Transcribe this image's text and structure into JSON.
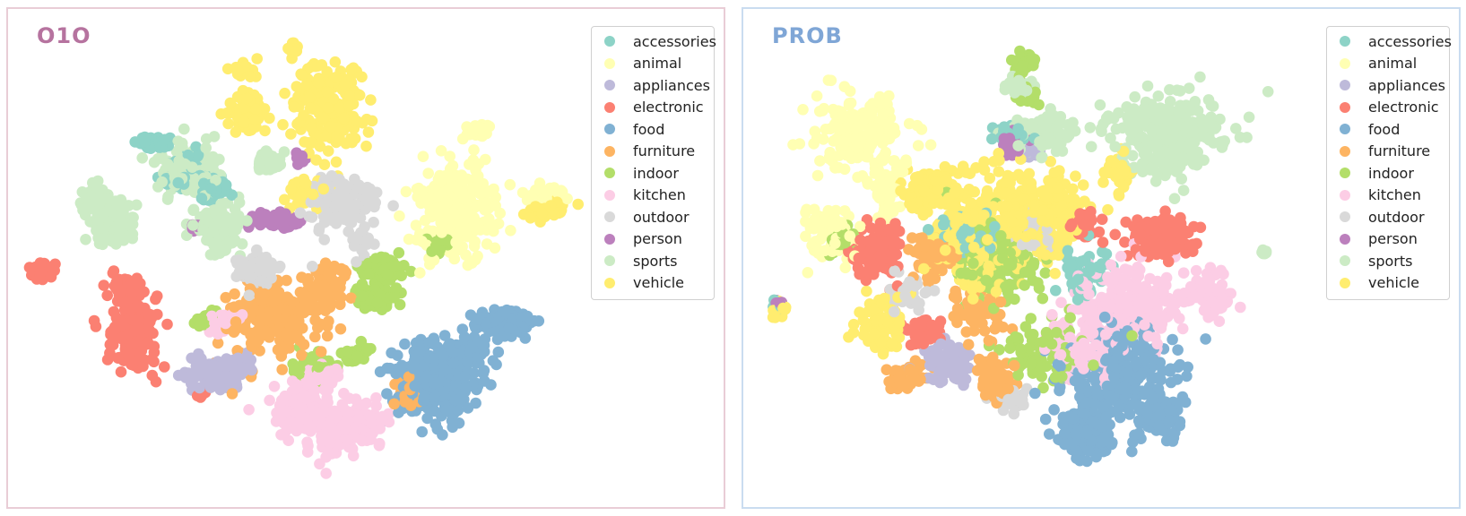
{
  "categories": [
    "accessories",
    "animal",
    "appliances",
    "electronic",
    "food",
    "furniture",
    "indoor",
    "kitchen",
    "outdoor",
    "person",
    "sports",
    "vehicle"
  ],
  "colors": {
    "accessories": "#8dd3c7",
    "animal": "#ffffb3",
    "appliances": "#bebada",
    "electronic": "#fb8072",
    "food": "#80b1d3",
    "furniture": "#fdb462",
    "indoor": "#b3de69",
    "kitchen": "#fccde5",
    "outdoor": "#d9d9d9",
    "person": "#bc80bd",
    "sports": "#ccebc5",
    "vehicle": "#ffed6f"
  },
  "panels": [
    {
      "title": "O1O",
      "title_color": "#b6739f",
      "border_color": "#e9cdd6"
    },
    {
      "title": "PROB",
      "title_color": "#7fa6d6",
      "border_color": "#cadcf0"
    }
  ],
  "chart_data": [
    {
      "type": "scatter",
      "title": "O1O",
      "xlabel": "",
      "ylabel": "",
      "axes": "hidden",
      "grid": false,
      "legend_placement": "top-right",
      "series": [
        {
          "name": "accessories",
          "clusters": [
            [
              160,
              -150,
              12,
              6,
              60
            ],
            [
              200,
              -180,
              22,
              18,
              80
            ],
            [
              230,
              -200,
              12,
              10,
              40
            ]
          ]
        },
        {
          "name": "animal",
          "clusters": [
            [
              500,
              -225,
              40,
              45,
              220
            ],
            [
              600,
              -205,
              18,
              8,
              40
            ],
            [
              525,
              -135,
              12,
              8,
              30
            ]
          ]
        },
        {
          "name": "appliances",
          "clusters": [
            [
              230,
              -410,
              30,
              15,
              110
            ],
            [
              260,
              -395,
              15,
              10,
              40
            ]
          ]
        },
        {
          "name": "electronic",
          "clusters": [
            [
              40,
              -295,
              12,
              8,
              40
            ],
            [
              140,
              -360,
              25,
              40,
              170
            ],
            [
              130,
              -315,
              15,
              10,
              40
            ],
            [
              215,
              -430,
              6,
              4,
              10
            ]
          ]
        },
        {
          "name": "food",
          "clusters": [
            [
              480,
              -415,
              45,
              35,
              240
            ],
            [
              550,
              -350,
              30,
              12,
              110
            ],
            [
              520,
              -380,
              15,
              15,
              40
            ]
          ]
        },
        {
          "name": "furniture",
          "clusters": [
            [
              300,
              -345,
              45,
              35,
              220
            ],
            [
              360,
              -310,
              20,
              18,
              60
            ],
            [
              450,
              -430,
              15,
              15,
              40
            ]
          ]
        },
        {
          "name": "indoor",
          "clusters": [
            [
              410,
              -320,
              20,
              10,
              70
            ],
            [
              420,
              -290,
              20,
              10,
              70
            ],
            [
              340,
              -400,
              18,
              12,
              60
            ],
            [
              220,
              -345,
              12,
              8,
              30
            ],
            [
              390,
              -385,
              12,
              10,
              30
            ],
            [
              480,
              -265,
              12,
              10,
              40
            ]
          ]
        },
        {
          "name": "kitchen",
          "clusters": [
            [
              330,
              -450,
              30,
              25,
              140
            ],
            [
              380,
              -465,
              35,
              25,
              140
            ],
            [
              350,
              -410,
              20,
              10,
              60
            ],
            [
              240,
              -350,
              20,
              10,
              30
            ]
          ]
        },
        {
          "name": "outdoor",
          "clusters": [
            [
              370,
              -215,
              30,
              25,
              150
            ],
            [
              280,
              -290,
              25,
              15,
              60
            ],
            [
              395,
              -260,
              10,
              10,
              20
            ]
          ]
        },
        {
          "name": "person",
          "clusters": [
            [
              300,
              -235,
              20,
              8,
              70
            ],
            [
              210,
              -245,
              6,
              5,
              10
            ],
            [
              325,
              -165,
              6,
              6,
              10
            ]
          ]
        },
        {
          "name": "sports",
          "clusters": [
            [
              200,
              -180,
              30,
              20,
              180
            ],
            [
              115,
              -240,
              22,
              18,
              110
            ],
            [
              95,
              -215,
              12,
              18,
              60
            ],
            [
              235,
              -245,
              22,
              25,
              110
            ],
            [
              290,
              -170,
              12,
              12,
              40
            ]
          ]
        },
        {
          "name": "vehicle",
          "clusters": [
            [
              265,
              -115,
              18,
              18,
              80
            ],
            [
              360,
              -110,
              35,
              40,
              220
            ],
            [
              260,
              -70,
              10,
              8,
              25
            ],
            [
              320,
              -45,
              8,
              8,
              15
            ],
            [
              600,
              -225,
              18,
              8,
              40
            ],
            [
              335,
              -205,
              25,
              15,
              40
            ]
          ]
        }
      ]
    },
    {
      "type": "scatter",
      "title": "PROB",
      "xlabel": "",
      "ylabel": "",
      "axes": "hidden",
      "grid": false,
      "legend_placement": "top-right",
      "series": [
        {
          "name": "accessories",
          "clusters": [
            [
              300,
              -140,
              15,
              10,
              60
            ],
            [
              250,
              -250,
              30,
              20,
              60
            ],
            [
              380,
              -290,
              25,
              25,
              50
            ],
            [
              40,
              -330,
              6,
              6,
              10
            ]
          ]
        },
        {
          "name": "animal",
          "clusters": [
            [
              130,
              -140,
              45,
              40,
              170
            ],
            [
              100,
              -250,
              25,
              25,
              70
            ],
            [
              160,
              -200,
              15,
              30,
              60
            ]
          ]
        },
        {
          "name": "appliances",
          "clusters": [
            [
              230,
              -395,
              25,
              20,
              90
            ],
            [
              320,
              -160,
              8,
              6,
              15
            ]
          ]
        },
        {
          "name": "electronic",
          "clusters": [
            [
              150,
              -270,
              20,
              25,
              130
            ],
            [
              470,
              -255,
              30,
              20,
              120
            ],
            [
              200,
              -360,
              20,
              12,
              50
            ],
            [
              380,
              -240,
              15,
              15,
              30
            ]
          ]
        },
        {
          "name": "food",
          "clusters": [
            [
              420,
              -410,
              50,
              45,
              260
            ],
            [
              380,
              -470,
              30,
              25,
              140
            ],
            [
              470,
              -455,
              20,
              18,
              70
            ]
          ]
        },
        {
          "name": "furniture",
          "clusters": [
            [
              280,
              -415,
              15,
              20,
              90
            ],
            [
              210,
              -270,
              20,
              20,
              80
            ],
            [
              180,
              -410,
              18,
              12,
              40
            ],
            [
              260,
              -340,
              25,
              20,
              60
            ]
          ]
        },
        {
          "name": "indoor",
          "clusters": [
            [
              315,
              -60,
              12,
              10,
              40
            ],
            [
              315,
              -95,
              10,
              8,
              25
            ],
            [
              110,
              -260,
              12,
              12,
              30
            ],
            [
              280,
              -280,
              40,
              40,
              140
            ],
            [
              340,
              -380,
              40,
              30,
              90
            ]
          ]
        },
        {
          "name": "kitchen",
          "clusters": [
            [
              430,
              -330,
              50,
              40,
              240
            ],
            [
              520,
              -320,
              20,
              20,
              80
            ],
            [
              380,
              -380,
              30,
              30,
              90
            ]
          ]
        },
        {
          "name": "outdoor",
          "clusters": [
            [
              300,
              -435,
              15,
              10,
              30
            ],
            [
              320,
              -250,
              20,
              20,
              50
            ],
            [
              180,
              -320,
              20,
              15,
              40
            ]
          ]
        },
        {
          "name": "person",
          "clusters": [
            [
              300,
              -150,
              12,
              10,
              60
            ],
            [
              40,
              -330,
              5,
              4,
              10
            ]
          ]
        },
        {
          "name": "sports",
          "clusters": [
            [
              470,
              -140,
              50,
              40,
              300
            ],
            [
              330,
              -140,
              30,
              20,
              100
            ],
            [
              305,
              -85,
              12,
              12,
              40
            ],
            [
              580,
              -270,
              4,
              4,
              8
            ]
          ]
        },
        {
          "name": "vehicle",
          "clusters": [
            [
              260,
              -250,
              40,
              50,
              260
            ],
            [
              330,
              -230,
              40,
              45,
              220
            ],
            [
              155,
              -350,
              18,
              25,
              90
            ],
            [
              210,
              -200,
              25,
              20,
              80
            ],
            [
              420,
              -180,
              15,
              15,
              40
            ],
            [
              40,
              -335,
              6,
              8,
              20
            ]
          ]
        }
      ]
    }
  ]
}
